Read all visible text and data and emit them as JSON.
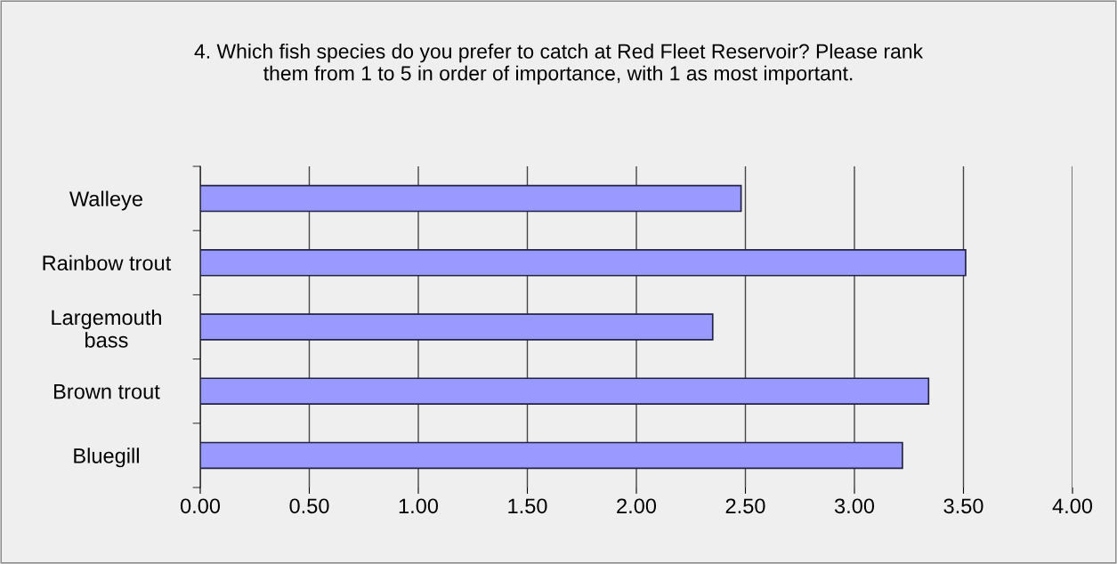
{
  "chart_data": {
    "type": "bar",
    "orientation": "horizontal",
    "title": "4. Which fish species do you prefer to catch at Red Fleet Reservoir? Please rank\nthem from 1 to 5 in order of importance, with 1 as most important.",
    "categories": [
      "Walleye",
      "Rainbow trout",
      "Largemouth\nbass",
      "Brown trout",
      "Bluegill"
    ],
    "values": [
      2.48,
      3.51,
      2.35,
      3.34,
      3.22
    ],
    "color": "#9999ff",
    "xlim": [
      0,
      4
    ],
    "xticks": [
      {
        "value": 0,
        "label": "0.00"
      },
      {
        "value": 0.5,
        "label": "0.50"
      },
      {
        "value": 1,
        "label": "1.00"
      },
      {
        "value": 1.5,
        "label": "1.50"
      },
      {
        "value": 2,
        "label": "2.00"
      },
      {
        "value": 2.5,
        "label": "2.50"
      },
      {
        "value": 3,
        "label": "3.00"
      },
      {
        "value": 3.5,
        "label": "3.50"
      },
      {
        "value": 4,
        "label": "4.00"
      }
    ],
    "grid": "x"
  }
}
